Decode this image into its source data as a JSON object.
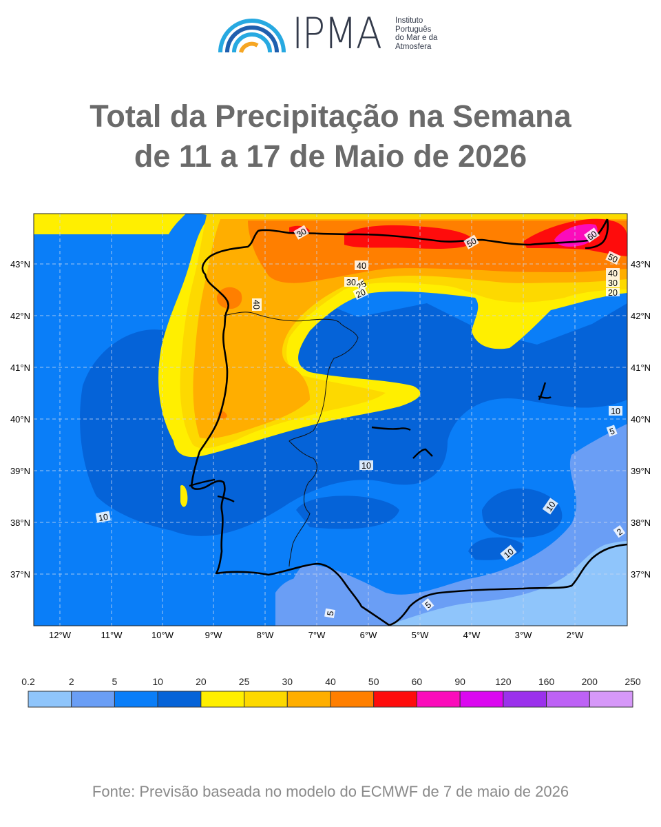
{
  "logo": {
    "name": "IPMA",
    "subtitle_lines": [
      "Instituto",
      "Português",
      "do Mar e da",
      "Atmosfera"
    ]
  },
  "title": {
    "line1": "Total da Precipitação na Semana",
    "line2": "de 11 a 17 de Maio de 2026"
  },
  "map": {
    "lat_labels": [
      "43°N",
      "42°N",
      "41°N",
      "40°N",
      "39°N",
      "38°N",
      "37°N"
    ],
    "lon_labels": [
      "12°W",
      "11°W",
      "10°W",
      "9°W",
      "8°W",
      "7°W",
      "6°W",
      "5°W",
      "4°W",
      "3°W",
      "2°W"
    ],
    "contour_labels": [
      "30",
      "50",
      "60",
      "50",
      "40",
      "40",
      "30",
      "25",
      "20",
      "40",
      "30",
      "20",
      "10",
      "5",
      "10",
      "10",
      "10",
      "10",
      "2",
      "5",
      "5"
    ],
    "grid": true
  },
  "legend": {
    "ticks": [
      "0.2",
      "2",
      "5",
      "10",
      "20",
      "25",
      "30",
      "40",
      "50",
      "60",
      "90",
      "120",
      "160",
      "200",
      "250"
    ],
    "colors": [
      "#8fc5fb",
      "#6a9ef5",
      "#0a7ef8",
      "#0563d8",
      "#ffef00",
      "#fdd900",
      "#ffae00",
      "#ff7f00",
      "#fe0c0c",
      "#fb0cbb",
      "#db08f0",
      "#9b31ec",
      "#bd62f5",
      "#d698f8"
    ]
  },
  "footer": "Fonte: Previsão baseada no modelo do ECMWF de 7 de maio de 2026"
}
